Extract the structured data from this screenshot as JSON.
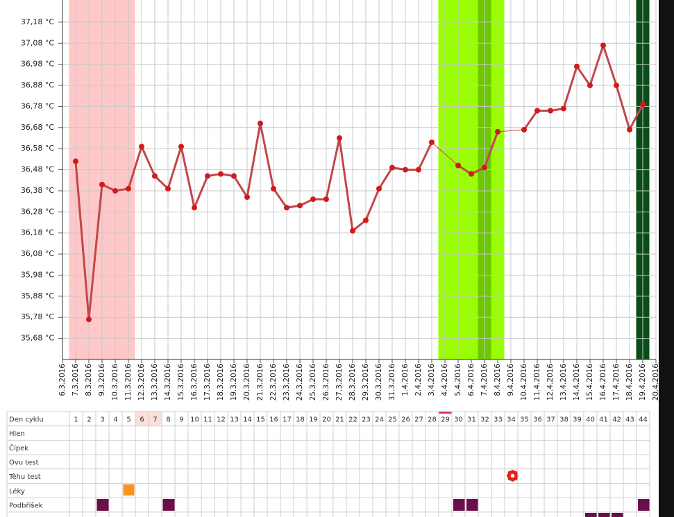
{
  "chart_data": {
    "type": "line",
    "categories": [
      "6.3.2016",
      "7.3.2016",
      "8.3.2016",
      "9.3.2016",
      "10.3.2016",
      "11.3.2016",
      "12.3.2016",
      "13.3.2016",
      "14.3.2016",
      "15.3.2016",
      "16.3.2016",
      "17.3.2016",
      "18.3.2016",
      "19.3.2016",
      "20.3.2016",
      "21.3.2016",
      "22.3.2016",
      "23.3.2016",
      "24.3.2016",
      "25.3.2016",
      "26.3.2016",
      "27.3.2016",
      "28.3.2016",
      "29.3.2016",
      "30.3.2016",
      "31.3.2016",
      "1.4.2016",
      "2.4.2016",
      "3.4.2016",
      "4.4.2016",
      "5.4.2016",
      "6.4.2016",
      "7.4.2016",
      "8.4.2016",
      "9.4.2016",
      "10.4.2016",
      "11.4.2016",
      "12.4.2016",
      "13.4.2016",
      "14.4.2016",
      "15.4.2016",
      "16.4.2016",
      "17.4.2016",
      "18.4.2016",
      "19.4.2016",
      "20.4.2016"
    ],
    "values": [
      null,
      36.52,
      35.77,
      36.41,
      36.38,
      36.39,
      36.59,
      36.45,
      36.39,
      36.59,
      36.3,
      36.45,
      36.46,
      36.45,
      36.35,
      36.7,
      36.39,
      36.3,
      36.31,
      36.34,
      36.34,
      36.63,
      36.19,
      36.24,
      36.39,
      36.49,
      36.48,
      36.48,
      36.61,
      null,
      36.5,
      36.46,
      36.49,
      36.66,
      null,
      36.67,
      36.76,
      36.76,
      36.77,
      36.97,
      36.88,
      37.07,
      36.88,
      36.67,
      36.79,
      null
    ],
    "color": "#d11a1a",
    "line_color": "#c1474b",
    "ylim": [
      35.58,
      37.285
    ],
    "yticks": [
      {
        "value": 35.68,
        "label": "35,68 °C"
      },
      {
        "value": 35.78,
        "label": "35,78 °C"
      },
      {
        "value": 35.88,
        "label": "35,88 °C"
      },
      {
        "value": 35.98,
        "label": "35,98 °C"
      },
      {
        "value": 36.08,
        "label": "36,08 °C"
      },
      {
        "value": 36.18,
        "label": "36,18 °C"
      },
      {
        "value": 36.28,
        "label": "36,28 °C"
      },
      {
        "value": 36.38,
        "label": "36,38 °C"
      },
      {
        "value": 36.48,
        "label": "36,48 °C"
      },
      {
        "value": 36.58,
        "label": "36,58 °C"
      },
      {
        "value": 36.68,
        "label": "36,68 °C"
      },
      {
        "value": 36.78,
        "label": "36,78 °C"
      },
      {
        "value": 36.88,
        "label": "36,88 °C"
      },
      {
        "value": 36.98,
        "label": "36,98 °C"
      },
      {
        "value": 37.08,
        "label": "37,08 °C"
      },
      {
        "value": 37.18,
        "label": "37,18 °C"
      }
    ],
    "grid": true,
    "bands": [
      {
        "start": "7.3.2016",
        "end": "11.3.2016",
        "color": "#ffc8c8"
      },
      {
        "start": "4.4.2016",
        "end": "8.4.2016",
        "color": "#99ff00"
      },
      {
        "start": "7.4.2016",
        "end": "7.4.2016",
        "color": "#6cc800"
      },
      {
        "start": "19.4.2016",
        "end": "19.4.2016",
        "color": "#0b4d18"
      }
    ]
  },
  "cycle_table": {
    "row_labels": [
      "Den cyklu",
      "Hlen",
      "Čípek",
      "Ovu test",
      "Těhu test",
      "Léky",
      "Podbříšek"
    ],
    "days": [
      1,
      2,
      3,
      4,
      5,
      6,
      7,
      8,
      9,
      10,
      11,
      12,
      13,
      14,
      15,
      16,
      17,
      18,
      19,
      20,
      21,
      22,
      23,
      24,
      25,
      26,
      27,
      28,
      29,
      30,
      31,
      32,
      33,
      34,
      35,
      36,
      37,
      38,
      39,
      40,
      41,
      42,
      43,
      44
    ]
  }
}
